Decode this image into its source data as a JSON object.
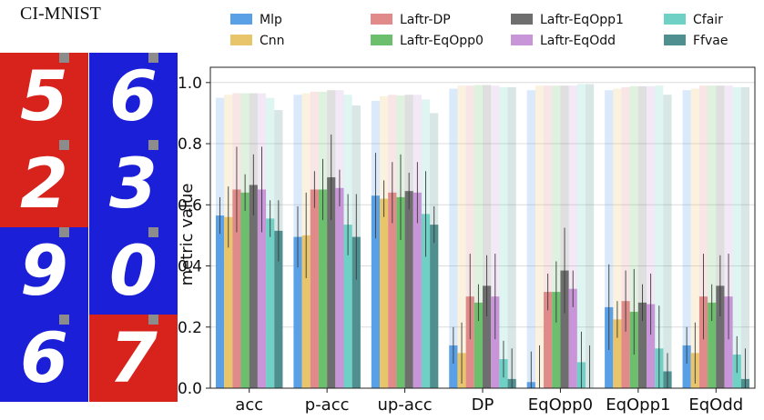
{
  "panel_title": "CI-MNIST",
  "mnist_grid": {
    "colors": {
      "red": "#d8231c",
      "blue": "#1c1fd8"
    },
    "cells": [
      {
        "digit": "5",
        "bg": "red"
      },
      {
        "digit": "6",
        "bg": "blue"
      },
      {
        "digit": "2",
        "bg": "red"
      },
      {
        "digit": "3",
        "bg": "blue"
      },
      {
        "digit": "9",
        "bg": "blue"
      },
      {
        "digit": "0",
        "bg": "blue"
      },
      {
        "digit": "6",
        "bg": "blue"
      },
      {
        "digit": "7",
        "bg": "red"
      }
    ]
  },
  "chart_data": {
    "type": "bar",
    "ylabel": "metric value",
    "ylim": [
      0,
      1.05
    ],
    "yticks": [
      "0.0",
      "0.2",
      "0.4",
      "0.6",
      "0.8",
      "1.0"
    ],
    "grid": true,
    "legend_position": "top",
    "categories": [
      "acc",
      "p-acc",
      "up-acc",
      "DP",
      "EqOpp0",
      "EqOpp1",
      "EqOdd"
    ],
    "series": [
      {
        "name": "Mlp",
        "color": "#5aa0e6",
        "values": [
          0.565,
          0.495,
          0.63,
          0.14,
          0.02,
          0.265,
          0.14
        ],
        "max": [
          0.95,
          0.96,
          0.94,
          0.98,
          0.975,
          0.975,
          0.975
        ]
      },
      {
        "name": "Cnn",
        "color": "#e8c56a",
        "values": [
          0.56,
          0.5,
          0.62,
          0.115,
          0.0,
          0.225,
          0.115
        ],
        "max": [
          0.96,
          0.965,
          0.955,
          0.99,
          0.99,
          0.98,
          0.98
        ]
      },
      {
        "name": "Laftr-DP",
        "color": "#e08a8a",
        "values": [
          0.65,
          0.65,
          0.64,
          0.3,
          0.315,
          0.285,
          0.3
        ],
        "max": [
          0.965,
          0.97,
          0.96,
          0.99,
          0.99,
          0.985,
          0.99
        ]
      },
      {
        "name": "Laftr-EqOpp0",
        "color": "#6cbf6c",
        "values": [
          0.64,
          0.65,
          0.625,
          0.28,
          0.315,
          0.25,
          0.28
        ],
        "max": [
          0.965,
          0.97,
          0.958,
          0.992,
          0.99,
          0.988,
          0.99
        ]
      },
      {
        "name": "Laftr-EqOpp1",
        "color": "#6e6e6e",
        "values": [
          0.665,
          0.69,
          0.645,
          0.335,
          0.385,
          0.28,
          0.335
        ],
        "max": [
          0.965,
          0.975,
          0.96,
          0.992,
          0.99,
          0.988,
          0.99
        ]
      },
      {
        "name": "Laftr-EqOdd",
        "color": "#c895d8",
        "values": [
          0.65,
          0.655,
          0.64,
          0.3,
          0.325,
          0.275,
          0.3
        ],
        "max": [
          0.965,
          0.975,
          0.96,
          0.99,
          0.99,
          0.988,
          0.99
        ]
      },
      {
        "name": "Cfair",
        "color": "#6fd0c6",
        "values": [
          0.555,
          0.535,
          0.57,
          0.095,
          0.085,
          0.13,
          0.11
        ],
        "max": [
          0.95,
          0.96,
          0.945,
          0.985,
          0.995,
          0.99,
          0.985
        ]
      },
      {
        "name": "Ffvae",
        "color": "#4f8f8f",
        "values": [
          0.515,
          0.495,
          0.535,
          0.03,
          0.0,
          0.055,
          0.03
        ],
        "max": [
          0.91,
          0.925,
          0.9,
          0.985,
          0.995,
          0.96,
          0.985
        ]
      }
    ]
  }
}
